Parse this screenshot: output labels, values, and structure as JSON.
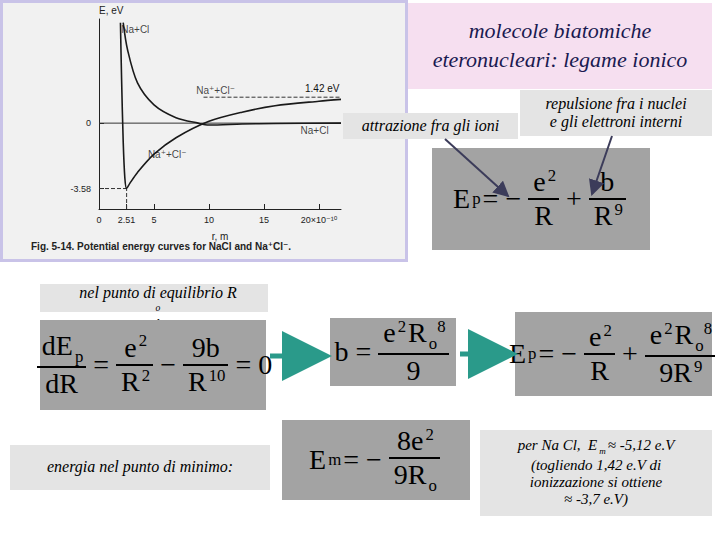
{
  "title": {
    "lines": [
      "molecole biatomiche",
      "eteronucleari: legame ionico"
    ]
  },
  "chart_data": {
    "type": "line",
    "xlabel": "r, m",
    "ylabel": "E, eV",
    "caption": "Fig. 5-14. Potential energy curves for NaCl and Na⁺Cl⁻.",
    "xlim": [
      0,
      22
    ],
    "ylim": [
      -4.7,
      5.7
    ],
    "xticks": [
      0,
      2.51,
      5,
      10,
      15,
      {
        "value": 20,
        "label": "20×10⁻¹⁰"
      }
    ],
    "yticks": [
      -3.58,
      0
    ],
    "grid": false,
    "series": [
      {
        "color": "#1a1a1a",
        "line_style": "solid",
        "x": [
          1.95,
          2.05,
          2.2,
          2.35,
          2.51,
          2.8,
          3.5,
          5,
          7,
          10,
          13,
          16,
          20,
          22
        ],
        "values": [
          5.5,
          2.5,
          -1.0,
          -3.0,
          -3.58,
          -3.3,
          -2.7,
          -1.7,
          -0.8,
          0.1,
          0.6,
          0.95,
          1.2,
          1.3
        ]
      },
      {
        "color": "#1a1a1a",
        "line_style": "solid",
        "x": [
          2.2,
          2.6,
          3.5,
          5,
          7,
          9,
          10,
          13,
          16,
          22
        ],
        "values": [
          5.5,
          4.0,
          2.2,
          1.0,
          0.3,
          0.0,
          -0.1,
          -0.05,
          -0.02,
          0
        ]
      }
    ],
    "reference_lines": [
      {
        "y": 0,
        "x_from": 0,
        "line_style": "solid"
      },
      {
        "y": 1.42,
        "x_from": 9.5,
        "line_style": "dashed",
        "label": "1.42 eV"
      }
    ],
    "minimum": {
      "x": 2.51,
      "y": -3.58
    },
    "annotations": [
      {
        "text": "Na+Cl",
        "x": 3.3,
        "y": 5.1
      },
      {
        "text": "Na⁺+Cl⁻",
        "x": 10.6,
        "y": 1.8
      },
      {
        "text": "Na⁺+Cl⁻",
        "x": 6.2,
        "y": -1.7
      },
      {
        "text": "Na+Cl",
        "x": 19.6,
        "y": -0.4
      }
    ]
  },
  "labels": {
    "attraction": [
      "attrazione fra gli ioni"
    ],
    "repulsion": [
      "repulsione fra i nuclei",
      "e gli elettroni interni"
    ],
    "equilibrium": [
      "nel punto di equilibrio R",
      {
        "sub": "o"
      },
      ":"
    ],
    "minimum_energy": [
      "energia nel punto di minimo:"
    ]
  },
  "formulas": {
    "potential": [
      "E",
      {
        "sub": "p"
      },
      "= −",
      {
        "frac": {
          "num": [
            "e",
            {
              "sup": "2"
            }
          ],
          "den": [
            "R"
          ]
        }
      },
      "+",
      {
        "frac": {
          "num": [
            "b"
          ],
          "den": [
            "R",
            {
              "sup": "9"
            }
          ]
        }
      }
    ],
    "derivative": [
      {
        "frac": {
          "num": [
            "dE",
            {
              "sub": "p"
            }
          ],
          "den": [
            "dR"
          ]
        }
      },
      "=",
      {
        "frac": {
          "num": [
            "e",
            {
              "sup": "2"
            }
          ],
          "den": [
            "R",
            {
              "sup": "2"
            }
          ]
        }
      },
      "−",
      {
        "frac": {
          "num": [
            "9b"
          ],
          "den": [
            "R",
            {
              "sup": "10"
            }
          ]
        }
      },
      "= 0"
    ],
    "b": [
      "b =",
      {
        "frac": {
          "num": [
            "e",
            {
              "sup": "2"
            },
            "R",
            {
              "sub": "o"
            },
            {
              "sup": "8"
            }
          ],
          "den": [
            "9"
          ]
        }
      }
    ],
    "potential_equilibrium": [
      "E",
      {
        "sub": "p"
      },
      "= −",
      {
        "frac": {
          "num": [
            "e",
            {
              "sup": "2"
            }
          ],
          "den": [
            "R"
          ]
        }
      },
      "+",
      {
        "frac": {
          "num": [
            "e",
            {
              "sup": "2"
            },
            "R",
            {
              "sub": "o"
            },
            {
              "sup": "8"
            }
          ],
          "den": [
            "9R",
            {
              "sup": "9"
            }
          ]
        }
      }
    ],
    "minimum": [
      "E",
      {
        "sub": "m"
      },
      "= −",
      {
        "frac": {
          "num": [
            "8e",
            {
              "sup": "2"
            }
          ],
          "den": [
            "9R",
            {
              "sub": "o"
            }
          ]
        }
      }
    ]
  },
  "note": {
    "lines": [
      [
        "per Na Cl,  E",
        {
          "sub": "m"
        },
        "≈ -5,12 e.V"
      ],
      [
        "(togliendo 1,42 e.V di"
      ],
      [
        "ionizzazione si ottiene"
      ],
      [
        "≈ -3,7 e.V)"
      ]
    ]
  }
}
